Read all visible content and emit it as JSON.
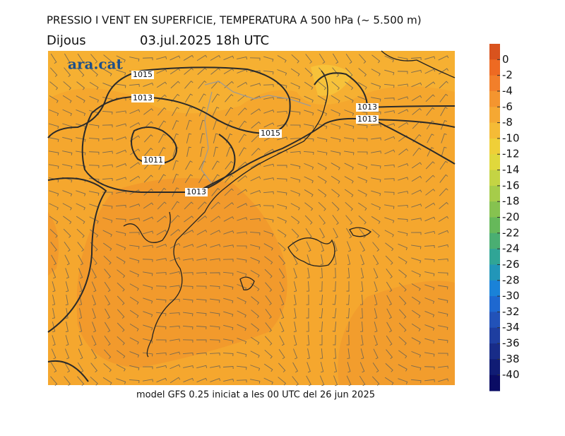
{
  "header": {
    "title": "PRESSIO I VENT EN SUPERFICIE, TEMPERATURA A 500 hPa (~ 5.500 m)",
    "day": "Dijous",
    "date": "03.jul.2025 18h UTC"
  },
  "map": {
    "logo": "ara.cat",
    "isobar_labels": [
      "1015",
      "1013",
      "1015",
      "1011",
      "1013",
      "1013",
      "1013"
    ]
  },
  "colorbar": {
    "lim": [
      2,
      -42
    ],
    "ticks": [
      0,
      -2,
      -4,
      -6,
      -8,
      -10,
      -12,
      -14,
      -16,
      -18,
      -20,
      -22,
      -24,
      -26,
      -28,
      -30,
      -32,
      -34,
      -36,
      -38,
      -40
    ],
    "colors": [
      "#d9531e",
      "#ee6a22",
      "#f27f2a",
      "#f4952f",
      "#f5a833",
      "#f5bb36",
      "#efcf38",
      "#e0d83c",
      "#c4d444",
      "#a6cc4a",
      "#86c250",
      "#66b85a",
      "#4aae72",
      "#30a596",
      "#2296b8",
      "#1a82d8",
      "#1e68d0",
      "#2252b8",
      "#1e3ea0",
      "#182c88",
      "#101c74",
      "#0a0c64"
    ]
  },
  "footer": "model GFS 0.25 iniciat a les 00 UTC del 26 jun 2025"
}
